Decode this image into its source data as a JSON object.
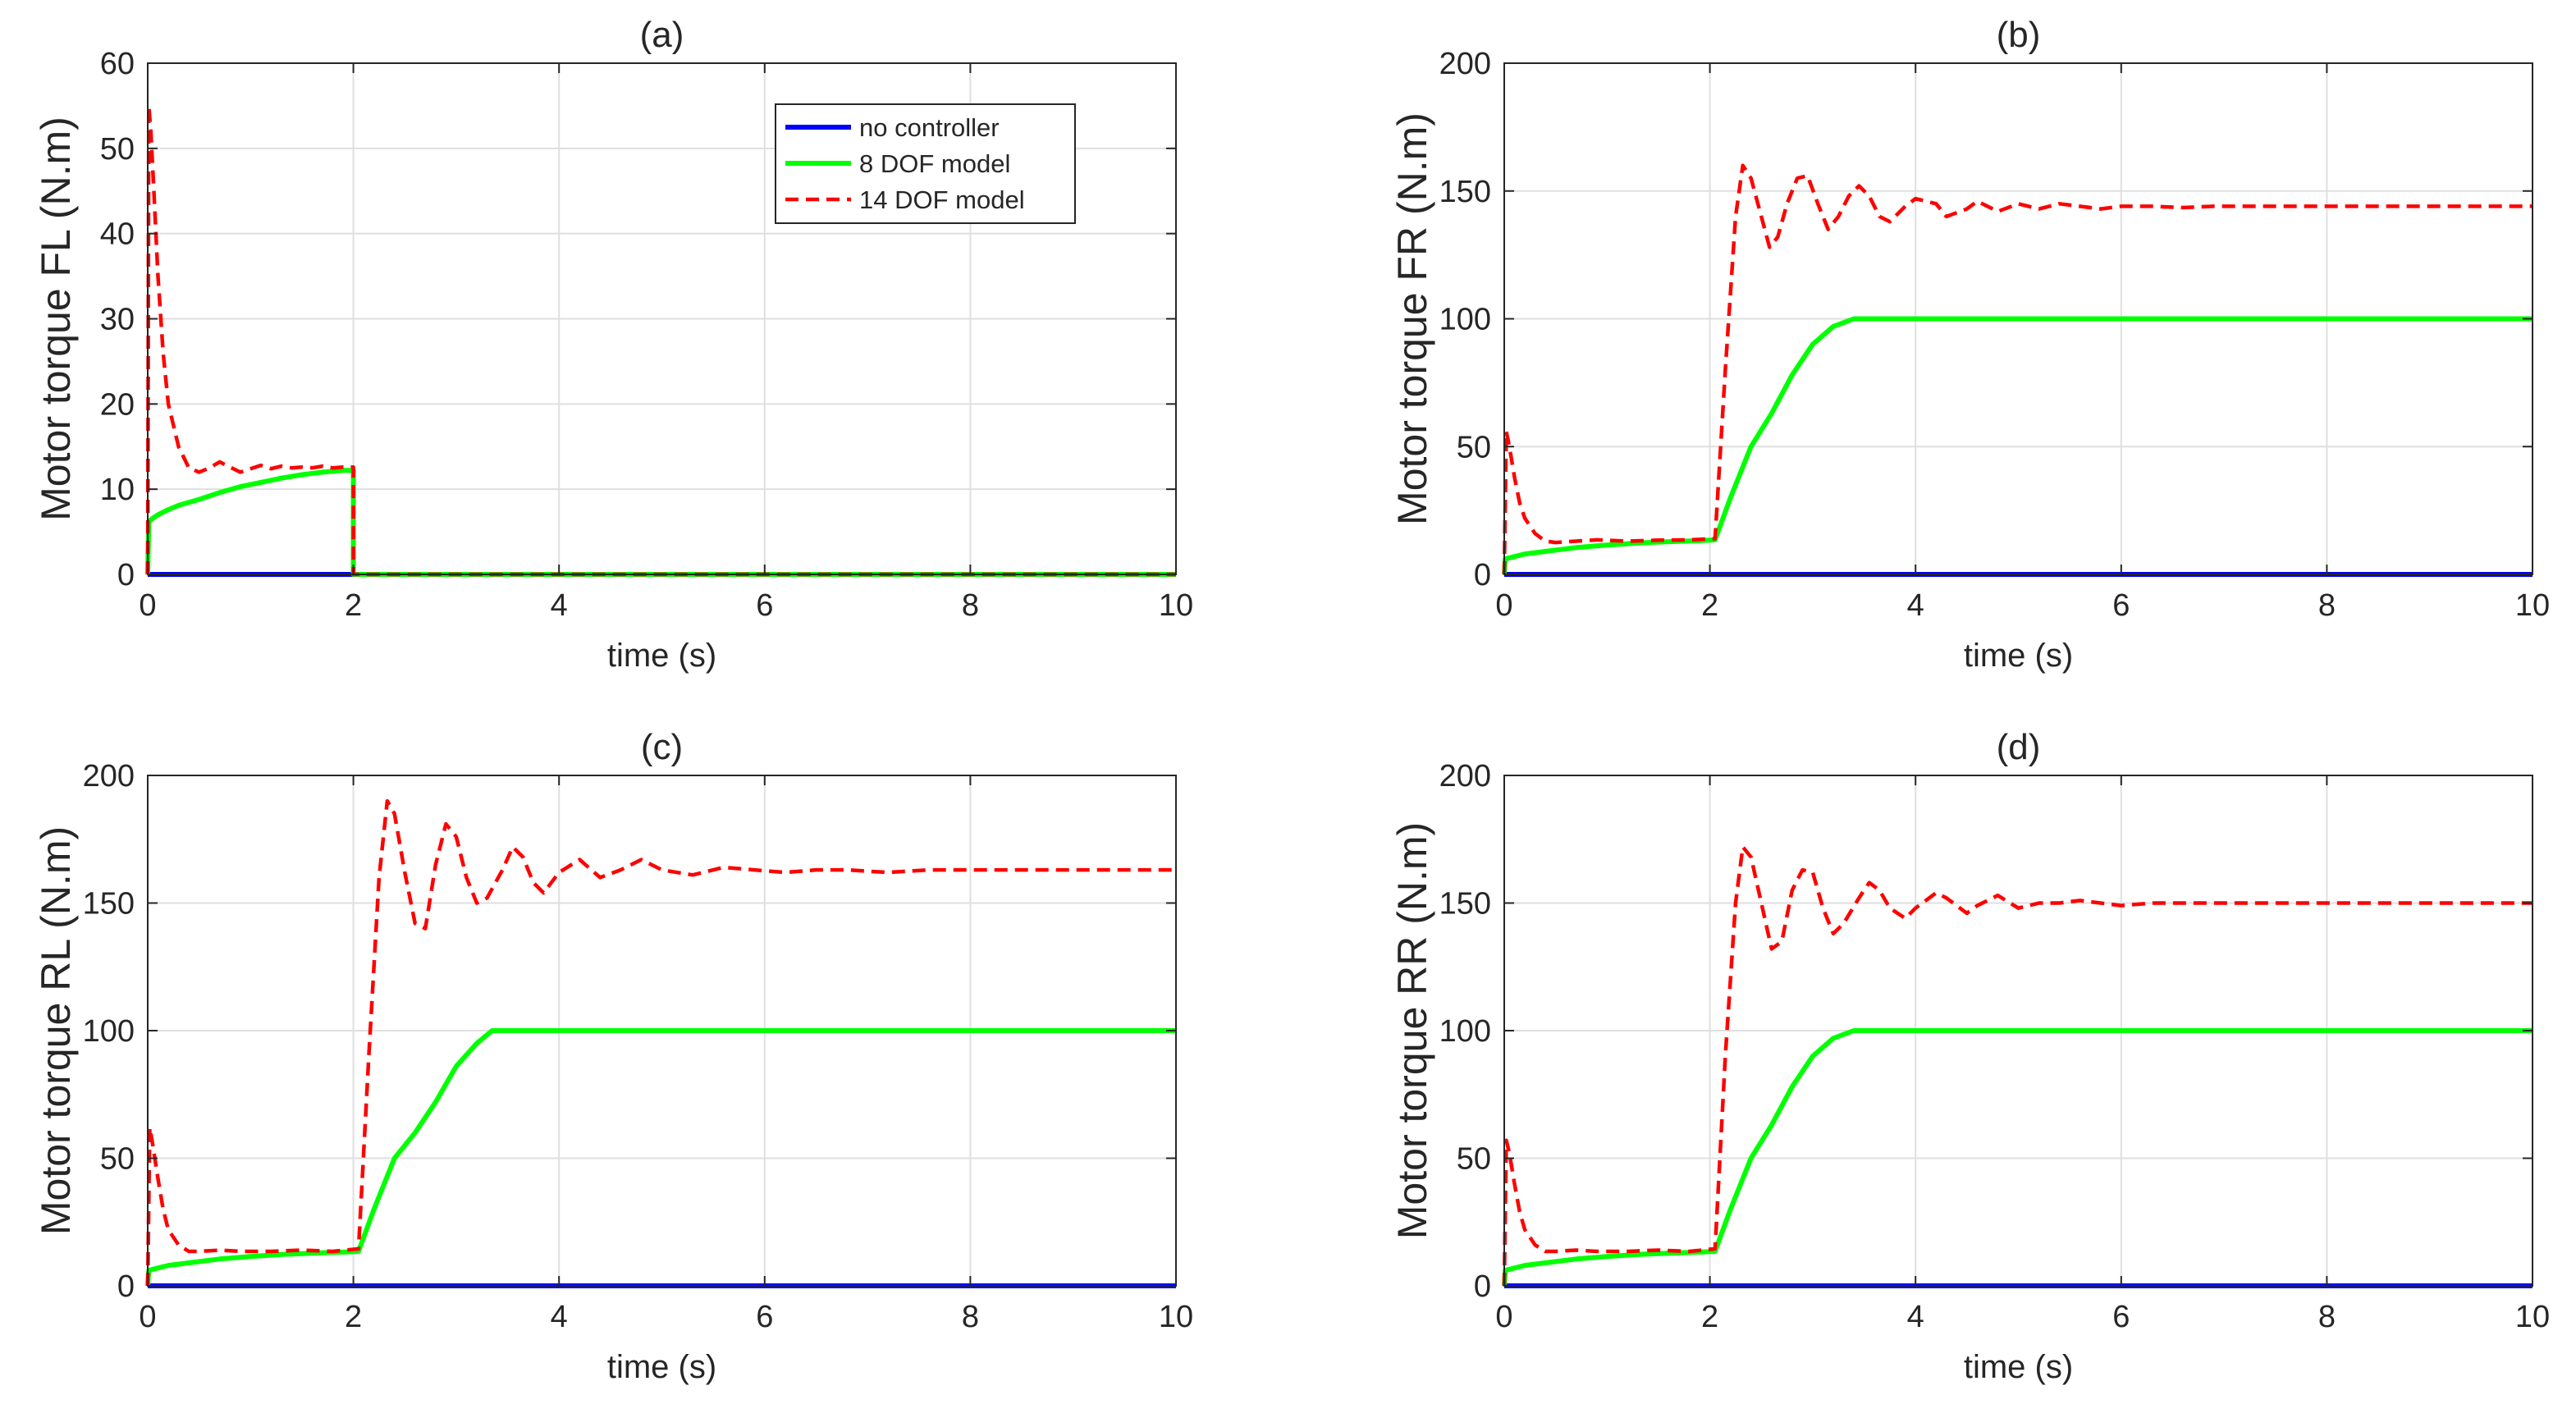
{
  "figure": {
    "background": "#ffffff"
  },
  "chart_data": [
    {
      "type": "line",
      "title": "(a)",
      "xlabel": "time (s)",
      "ylabel": "Motor torque FL (N.m)",
      "xlim": [
        0,
        10
      ],
      "ylim": [
        0,
        60
      ],
      "xticks": [
        0,
        2,
        4,
        6,
        8,
        10
      ],
      "yticks": [
        0,
        10,
        20,
        30,
        40,
        50,
        60
      ],
      "grid": true,
      "legend": {
        "placement": "top-right",
        "entries": [
          "no controller",
          "8 DOF model",
          "14 DOF model"
        ]
      },
      "series": [
        {
          "name": "no controller",
          "color": "#0000ff",
          "style": "solid",
          "x": [
            0,
            10
          ],
          "y": [
            0,
            0
          ]
        },
        {
          "name": "8 DOF model",
          "color": "#00ff00",
          "style": "solid",
          "x": [
            0,
            0.01,
            0.05,
            0.1,
            0.2,
            0.3,
            0.5,
            0.7,
            0.9,
            1.1,
            1.3,
            1.5,
            1.7,
            1.9,
            2.0,
            2.0,
            2.2,
            10
          ],
          "y": [
            0,
            6.2,
            6.6,
            7.0,
            7.6,
            8.1,
            8.8,
            9.6,
            10.3,
            10.8,
            11.3,
            11.7,
            12.0,
            12.2,
            12.2,
            0,
            0,
            0
          ]
        },
        {
          "name": "14 DOF model",
          "color": "#ff0000",
          "style": "dashed",
          "x": [
            0,
            0.01,
            0.03,
            0.06,
            0.1,
            0.15,
            0.2,
            0.3,
            0.4,
            0.5,
            0.6,
            0.7,
            0.8,
            0.9,
            1.0,
            1.1,
            1.2,
            1.3,
            1.4,
            1.5,
            1.6,
            1.7,
            1.8,
            1.9,
            2.0,
            2.0,
            2.2,
            10
          ],
          "y": [
            0,
            55,
            52,
            45,
            35,
            26,
            20,
            15,
            12.5,
            12,
            12.5,
            13.2,
            12.6,
            12.0,
            12.4,
            12.8,
            12.4,
            12.7,
            12.5,
            12.6,
            12.5,
            12.7,
            12.5,
            12.6,
            12.6,
            0,
            0,
            0
          ]
        }
      ]
    },
    {
      "type": "line",
      "title": "(b)",
      "xlabel": "time (s)",
      "ylabel": "Motor torque FR (N.m)",
      "xlim": [
        0,
        10
      ],
      "ylim": [
        0,
        200
      ],
      "xticks": [
        0,
        2,
        4,
        6,
        8,
        10
      ],
      "yticks": [
        0,
        50,
        100,
        150,
        200
      ],
      "grid": true,
      "series": [
        {
          "name": "no controller",
          "color": "#0000ff",
          "style": "solid",
          "x": [
            0,
            10
          ],
          "y": [
            0,
            0
          ]
        },
        {
          "name": "8 DOF model",
          "color": "#00ff00",
          "style": "solid",
          "x": [
            0,
            0.01,
            0.05,
            0.2,
            0.4,
            0.7,
            1.0,
            1.3,
            1.6,
            1.9,
            2.05,
            2.2,
            2.4,
            2.6,
            2.8,
            3.0,
            3.2,
            3.4,
            10
          ],
          "y": [
            0,
            6,
            6.5,
            8,
            9,
            10.5,
            11.5,
            12.3,
            12.8,
            13.2,
            13.5,
            30,
            50,
            63,
            78,
            90,
            97,
            100,
            100
          ]
        },
        {
          "name": "14 DOF model",
          "color": "#ff0000",
          "style": "dashed",
          "x": [
            0,
            0.02,
            0.05,
            0.1,
            0.15,
            0.2,
            0.3,
            0.4,
            0.5,
            0.7,
            0.9,
            1.2,
            1.5,
            1.8,
            2.05,
            2.15,
            2.25,
            2.32,
            2.4,
            2.5,
            2.58,
            2.66,
            2.75,
            2.85,
            2.95,
            3.05,
            3.15,
            3.25,
            3.35,
            3.45,
            3.55,
            3.65,
            3.75,
            3.9,
            4.0,
            4.2,
            4.3,
            4.5,
            4.6,
            4.8,
            5.0,
            5.2,
            5.4,
            5.6,
            5.8,
            6.0,
            6.3,
            6.6,
            6.9,
            7.2,
            10
          ],
          "y": [
            0,
            56,
            50,
            38,
            28,
            22,
            16,
            13,
            12.5,
            13,
            13.5,
            13,
            13.4,
            13.5,
            14,
            80,
            140,
            160,
            155,
            140,
            128,
            132,
            145,
            155,
            156,
            145,
            135,
            140,
            148,
            152,
            148,
            140,
            138,
            144,
            147,
            145,
            140,
            143,
            146,
            142,
            145,
            143,
            145,
            144,
            143,
            144,
            144,
            143.5,
            144,
            144,
            144
          ]
        }
      ]
    },
    {
      "type": "line",
      "title": "(c)",
      "xlabel": "time (s)",
      "ylabel": "Motor torque RL (N.m)",
      "xlim": [
        0,
        10
      ],
      "ylim": [
        0,
        200
      ],
      "xticks": [
        0,
        2,
        4,
        6,
        8,
        10
      ],
      "yticks": [
        0,
        50,
        100,
        150,
        200
      ],
      "grid": true,
      "series": [
        {
          "name": "no controller",
          "color": "#0000ff",
          "style": "solid",
          "x": [
            0,
            10
          ],
          "y": [
            0,
            0
          ]
        },
        {
          "name": "8 DOF model",
          "color": "#00ff00",
          "style": "solid",
          "x": [
            0,
            0.01,
            0.05,
            0.2,
            0.4,
            0.7,
            1.0,
            1.3,
            1.6,
            1.9,
            2.05,
            2.2,
            2.4,
            2.6,
            2.8,
            3.0,
            3.2,
            3.35,
            10
          ],
          "y": [
            0,
            6,
            6.5,
            8,
            9,
            10.5,
            11.5,
            12.3,
            12.8,
            13.2,
            13.5,
            30,
            50,
            60,
            72,
            86,
            95,
            100,
            100
          ]
        },
        {
          "name": "14 DOF model",
          "color": "#ff0000",
          "style": "dashed",
          "x": [
            0,
            0.02,
            0.05,
            0.1,
            0.15,
            0.2,
            0.3,
            0.4,
            0.5,
            0.7,
            0.9,
            1.2,
            1.5,
            1.8,
            2.05,
            2.15,
            2.25,
            2.33,
            2.4,
            2.5,
            2.6,
            2.7,
            2.8,
            2.9,
            3.0,
            3.1,
            3.2,
            3.3,
            3.45,
            3.55,
            3.65,
            3.75,
            3.85,
            4.0,
            4.2,
            4.4,
            4.6,
            4.8,
            5.0,
            5.3,
            5.6,
            5.9,
            6.2,
            6.5,
            6.8,
            7.2,
            7.6,
            10
          ],
          "y": [
            0,
            62,
            55,
            42,
            30,
            22,
            16,
            13.5,
            13.5,
            14,
            13.5,
            13.5,
            14,
            13.5,
            14.5,
            90,
            160,
            190,
            185,
            162,
            142,
            140,
            165,
            181,
            176,
            160,
            150,
            152,
            163,
            172,
            168,
            158,
            154,
            162,
            167,
            160,
            163,
            167,
            163,
            161,
            164,
            163,
            162,
            163,
            163,
            162,
            163,
            163
          ]
        }
      ]
    },
    {
      "type": "line",
      "title": "(d)",
      "xlabel": "time (s)",
      "ylabel": "Motor torque RR (N.m)",
      "xlim": [
        0,
        10
      ],
      "ylim": [
        0,
        200
      ],
      "xticks": [
        0,
        2,
        4,
        6,
        8,
        10
      ],
      "yticks": [
        0,
        50,
        100,
        150,
        200
      ],
      "grid": true,
      "series": [
        {
          "name": "no controller",
          "color": "#0000ff",
          "style": "solid",
          "x": [
            0,
            10
          ],
          "y": [
            0,
            0
          ]
        },
        {
          "name": "8 DOF model",
          "color": "#00ff00",
          "style": "solid",
          "x": [
            0,
            0.01,
            0.05,
            0.2,
            0.4,
            0.7,
            1.0,
            1.3,
            1.6,
            1.9,
            2.05,
            2.2,
            2.4,
            2.6,
            2.8,
            3.0,
            3.2,
            3.4,
            10
          ],
          "y": [
            0,
            6,
            6.5,
            8,
            9,
            10.5,
            11.5,
            12.3,
            12.8,
            13.2,
            13.5,
            30,
            50,
            63,
            78,
            90,
            97,
            100,
            100
          ]
        },
        {
          "name": "14 DOF model",
          "color": "#ff0000",
          "style": "dashed",
          "x": [
            0,
            0.02,
            0.05,
            0.1,
            0.15,
            0.2,
            0.3,
            0.4,
            0.5,
            0.7,
            0.9,
            1.2,
            1.5,
            1.8,
            2.05,
            2.15,
            2.25,
            2.32,
            2.4,
            2.5,
            2.6,
            2.7,
            2.8,
            2.9,
            3.0,
            3.1,
            3.2,
            3.3,
            3.45,
            3.55,
            3.65,
            3.75,
            3.9,
            4.0,
            4.2,
            4.3,
            4.5,
            4.6,
            4.8,
            5.0,
            5.2,
            5.4,
            5.6,
            5.8,
            6.0,
            6.3,
            6.6,
            6.9,
            7.2,
            10
          ],
          "y": [
            0,
            57,
            52,
            40,
            29,
            22,
            16,
            13.5,
            13.5,
            14,
            13.5,
            13.5,
            14,
            13.5,
            14.5,
            90,
            150,
            172,
            168,
            150,
            132,
            135,
            155,
            163,
            162,
            148,
            138,
            142,
            152,
            158,
            155,
            148,
            144,
            148,
            154,
            152,
            146,
            149,
            153,
            148,
            150,
            150,
            151,
            150,
            149,
            150,
            150,
            150,
            150,
            150
          ]
        }
      ]
    }
  ]
}
